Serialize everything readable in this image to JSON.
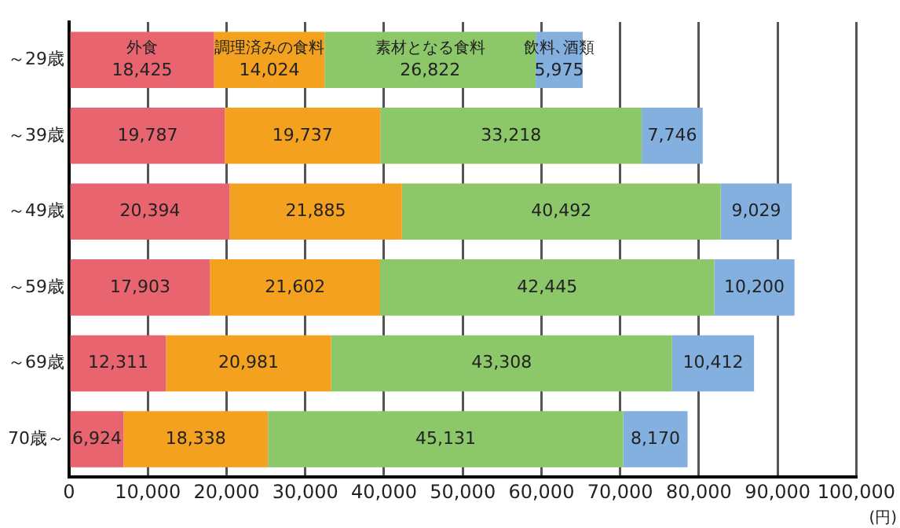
{
  "chart_data": {
    "type": "bar",
    "orientation": "horizontal",
    "stacked": true,
    "categories": [
      "～29歳",
      "～39歳",
      "～49歳",
      "～59歳",
      "～69歳",
      "70歳～"
    ],
    "series": [
      {
        "name": "外食",
        "color": "#e8656f",
        "values": [
          18425,
          19787,
          20394,
          17903,
          12311,
          6924
        ],
        "value_labels": [
          "18,425",
          "19,787",
          "20,394",
          "17,903",
          "12,311",
          "6,924"
        ]
      },
      {
        "name": "調理済みの食料",
        "color": "#f3a11f",
        "values": [
          14024,
          19737,
          21885,
          21602,
          20981,
          18338
        ],
        "value_labels": [
          "14,024",
          "19,737",
          "21,885",
          "21,602",
          "20,981",
          "18,338"
        ]
      },
      {
        "name": "素材となる食料",
        "color": "#8cc76a",
        "values": [
          26822,
          33218,
          40492,
          42445,
          43308,
          45131
        ],
        "value_labels": [
          "26,822",
          "33,218",
          "40,492",
          "42,445",
          "43,308",
          "45,131"
        ]
      },
      {
        "name": "飲料､酒類",
        "color": "#84b0e0",
        "values": [
          5975,
          7746,
          9029,
          10200,
          10412,
          8170
        ],
        "value_labels": [
          "5,975",
          "7,746",
          "9,029",
          "10,200",
          "10,412",
          "8,170"
        ]
      }
    ],
    "xlim": [
      0,
      100000
    ],
    "xticks": [
      0,
      {
        "value": 10000,
        "label": "10,000"
      },
      {
        "value": 20000,
        "label": "20,000"
      },
      {
        "value": 30000,
        "label": "30,000"
      },
      {
        "value": 40000,
        "label": "40,000"
      },
      {
        "value": 50000,
        "label": "50,000"
      },
      {
        "value": 60000,
        "label": "60,000"
      },
      {
        "value": 70000,
        "label": "70,000"
      },
      {
        "value": 80000,
        "label": "80,000"
      },
      {
        "value": 90000,
        "label": "90,000"
      },
      {
        "value": 100000,
        "label": "100,000"
      }
    ],
    "xlabel": "(円)",
    "grid": "x",
    "legend": false
  }
}
